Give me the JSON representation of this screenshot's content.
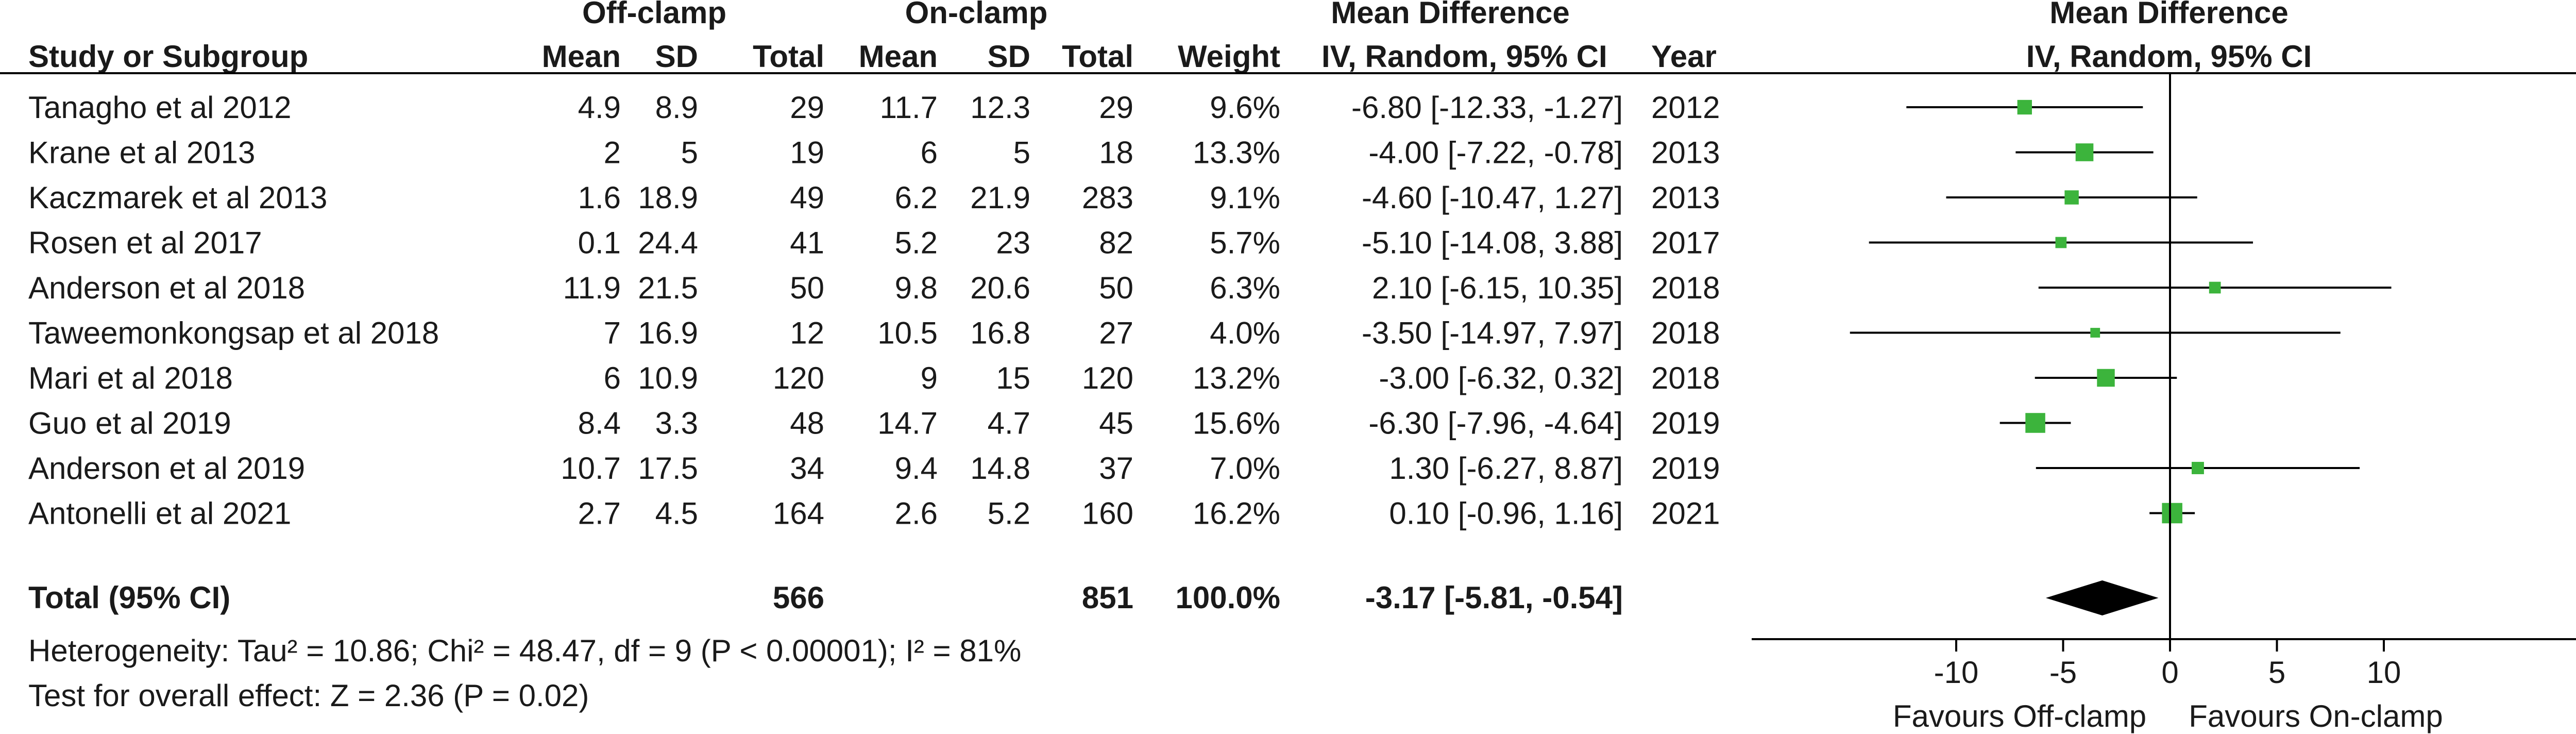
{
  "chart_data": {
    "type": "forest",
    "headers": {
      "group1": "Off-clamp",
      "group2": "On-clamp",
      "study": "Study or Subgroup",
      "mean": "Mean",
      "sd": "SD",
      "total": "Total",
      "weight": "Weight",
      "md_title": "Mean Difference",
      "md_method": "IV, Random, 95% CI",
      "year": "Year",
      "plot_title": "Mean Difference",
      "plot_method": "IV, Random, 95% CI"
    },
    "studies": [
      {
        "name": "Tanagho et al 2012",
        "m1": "4.9",
        "sd1": "8.9",
        "n1": "29",
        "m2": "11.7",
        "sd2": "12.3",
        "n2": "29",
        "weight": "9.6%",
        "ci_text": "-6.80 [-12.33, -1.27]",
        "year": "2012",
        "md": -6.8,
        "lo": -12.33,
        "hi": -1.27
      },
      {
        "name": "Krane et al 2013",
        "m1": "2",
        "sd1": "5",
        "n1": "19",
        "m2": "6",
        "sd2": "5",
        "n2": "18",
        "weight": "13.3%",
        "ci_text": "-4.00 [-7.22, -0.78]",
        "year": "2013",
        "md": -4.0,
        "lo": -7.22,
        "hi": -0.78
      },
      {
        "name": "Kaczmarek et al 2013",
        "m1": "1.6",
        "sd1": "18.9",
        "n1": "49",
        "m2": "6.2",
        "sd2": "21.9",
        "n2": "283",
        "weight": "9.1%",
        "ci_text": "-4.60 [-10.47, 1.27]",
        "year": "2013",
        "md": -4.6,
        "lo": -10.47,
        "hi": 1.27
      },
      {
        "name": "Rosen et al 2017",
        "m1": "0.1",
        "sd1": "24.4",
        "n1": "41",
        "m2": "5.2",
        "sd2": "23",
        "n2": "82",
        "weight": "5.7%",
        "ci_text": "-5.10 [-14.08, 3.88]",
        "year": "2017",
        "md": -5.1,
        "lo": -14.08,
        "hi": 3.88
      },
      {
        "name": "Anderson et al 2018",
        "m1": "11.9",
        "sd1": "21.5",
        "n1": "50",
        "m2": "9.8",
        "sd2": "20.6",
        "n2": "50",
        "weight": "6.3%",
        "ci_text": "2.10 [-6.15, 10.35]",
        "year": "2018",
        "md": 2.1,
        "lo": -6.15,
        "hi": 10.35
      },
      {
        "name": "Taweemonkongsap et al 2018",
        "m1": "7",
        "sd1": "16.9",
        "n1": "12",
        "m2": "10.5",
        "sd2": "16.8",
        "n2": "27",
        "weight": "4.0%",
        "ci_text": "-3.50 [-14.97, 7.97]",
        "year": "2018",
        "md": -3.5,
        "lo": -14.97,
        "hi": 7.97
      },
      {
        "name": "Mari et al 2018",
        "m1": "6",
        "sd1": "10.9",
        "n1": "120",
        "m2": "9",
        "sd2": "15",
        "n2": "120",
        "weight": "13.2%",
        "ci_text": "-3.00 [-6.32, 0.32]",
        "year": "2018",
        "md": -3.0,
        "lo": -6.32,
        "hi": 0.32
      },
      {
        "name": "Guo et al 2019",
        "m1": "8.4",
        "sd1": "3.3",
        "n1": "48",
        "m2": "14.7",
        "sd2": "4.7",
        "n2": "45",
        "weight": "15.6%",
        "ci_text": "-6.30 [-7.96, -4.64]",
        "year": "2019",
        "md": -6.3,
        "lo": -7.96,
        "hi": -4.64
      },
      {
        "name": "Anderson et al 2019",
        "m1": "10.7",
        "sd1": "17.5",
        "n1": "34",
        "m2": "9.4",
        "sd2": "14.8",
        "n2": "37",
        "weight": "7.0%",
        "ci_text": "1.30 [-6.27, 8.87]",
        "year": "2019",
        "md": 1.3,
        "lo": -6.27,
        "hi": 8.87
      },
      {
        "name": "Antonelli et al 2021",
        "m1": "2.7",
        "sd1": "4.5",
        "n1": "164",
        "m2": "2.6",
        "sd2": "5.2",
        "n2": "160",
        "weight": "16.2%",
        "ci_text": "0.10 [-0.96, 1.16]",
        "year": "2021",
        "md": 0.1,
        "lo": -0.96,
        "hi": 1.16
      }
    ],
    "total": {
      "label": "Total (95% CI)",
      "n1": "566",
      "n2": "851",
      "weight": "100.0%",
      "ci_text": "-3.17 [-5.81, -0.54]",
      "md": -3.17,
      "lo": -5.81,
      "hi": -0.54
    },
    "heterogeneity": "Heterogeneity: Tau² = 10.86; Chi² = 48.47, df = 9 (P < 0.00001); I² = 81%",
    "overall_effect": "Test for overall effect: Z = 2.36 (P = 0.02)",
    "x_axis": {
      "range": [
        -20,
        20
      ],
      "ticks": [
        -10,
        -5,
        0,
        5,
        10
      ],
      "tick_labels": [
        "-10",
        "-5",
        "0",
        "5",
        "10"
      ]
    },
    "favours_left": "Favours Off-clamp",
    "favours_right": "Favours On-clamp",
    "colors": {
      "marker": "#3cb43c",
      "diamond": "#000000",
      "line": "#000000",
      "text": "#1a1a1a"
    }
  }
}
